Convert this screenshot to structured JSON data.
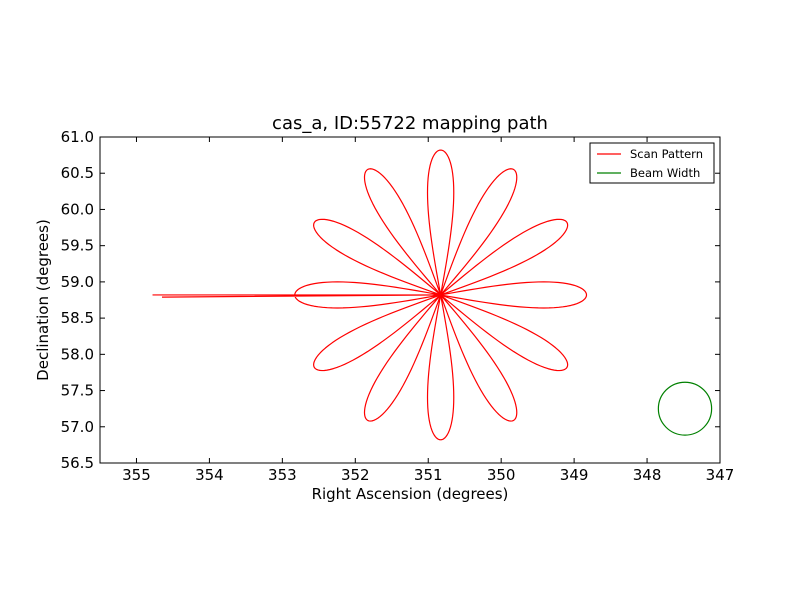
{
  "chart_data": {
    "type": "line",
    "title": "cas_a, ID:55722 mapping path",
    "xlabel": "Right Ascension (degrees)",
    "ylabel": "Declination (degrees)",
    "xlim": [
      355.5,
      347.0
    ],
    "ylim": [
      56.5,
      61.0
    ],
    "x_inverted": true,
    "xticks": [
      355,
      354,
      353,
      352,
      351,
      350,
      349,
      348,
      347
    ],
    "xtick_labels": [
      "355",
      "354",
      "353",
      "352",
      "351",
      "350",
      "349",
      "348",
      "347"
    ],
    "yticks": [
      56.5,
      57.0,
      57.5,
      58.0,
      58.5,
      59.0,
      59.5,
      60.0,
      60.5,
      61.0
    ],
    "ytick_labels": [
      "56.5",
      "57.0",
      "57.5",
      "58.0",
      "58.5",
      "59.0",
      "59.5",
      "60.0",
      "60.5",
      "61.0"
    ],
    "grid": false,
    "legend_position": "top-right",
    "series": [
      {
        "name": "Scan Pattern",
        "color": "#ff0000",
        "pattern": "rose",
        "center": [
          350.83,
          58.82
        ],
        "petal_count": 12,
        "petal_angles_deg": [
          0,
          30,
          60,
          90,
          120,
          150,
          180,
          210,
          240,
          270,
          300,
          330
        ],
        "petal_length_deg": 2.0,
        "petal_half_width_deg": 0.18,
        "start": [
          354.65,
          58.79
        ],
        "end": [
          354.78,
          58.82
        ]
      },
      {
        "name": "Beam Width",
        "color": "#008000",
        "pattern": "circle",
        "center": [
          347.48,
          57.25
        ],
        "radius_deg": 0.365
      }
    ]
  }
}
